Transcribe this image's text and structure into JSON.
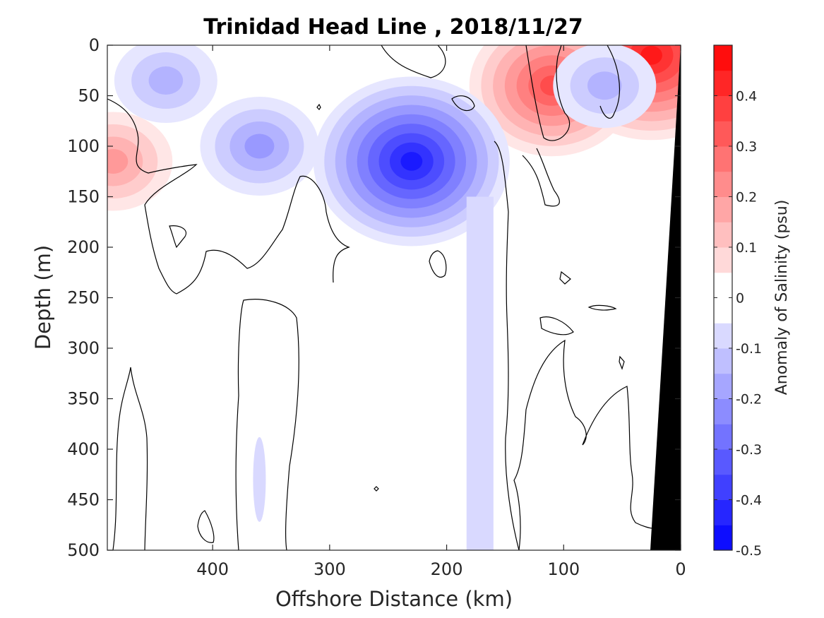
{
  "chart_data": {
    "type": "heatmap",
    "subtype": "filled-contour-section",
    "title": "Trinidad Head Line , 2018/11/27",
    "xlabel": "Offshore Distance (km)",
    "ylabel": "Depth (m)",
    "xlim": [
      0,
      490
    ],
    "x_reversed": true,
    "ylim": [
      0,
      500
    ],
    "y_reversed": true,
    "x_ticks": [
      400,
      300,
      200,
      100,
      0
    ],
    "y_ticks": [
      0,
      50,
      100,
      150,
      200,
      250,
      300,
      350,
      400,
      450,
      500
    ],
    "colorbar": {
      "label": "Anomaly of Salinity (psu)",
      "range": [
        -0.5,
        0.5
      ],
      "level_step": 0.05,
      "ticks": [
        0.4,
        0.3,
        0.2,
        0.1,
        0,
        -0.1,
        -0.2,
        -0.3,
        -0.4,
        -0.5
      ],
      "tick_labels": [
        "0.4",
        "0.3",
        "0.2",
        "0.1",
        "0",
        "-0.1",
        "-0.2",
        "-0.3",
        "-0.4",
        "-0.5"
      ],
      "colormap": "diverging blue-white-red",
      "negative_color": "#0000ff",
      "zero_color": "#ffffff",
      "positive_color": "#ff0000"
    },
    "bathymetry_color": "#000000",
    "zero_contour_color": "#000000",
    "features": [
      {
        "name": "nearshore surface max",
        "x_km": 25,
        "depth_m": 10,
        "value": 0.45
      },
      {
        "name": "shelf subsurface max",
        "x_km": 110,
        "depth_m": 40,
        "value": 0.35
      },
      {
        "name": "offshore subsurface max",
        "x_km": 485,
        "depth_m": 115,
        "value": 0.2
      },
      {
        "name": "subsurface min",
        "x_km": 230,
        "depth_m": 115,
        "value": -0.45
      },
      {
        "name": "minor min",
        "x_km": 360,
        "depth_m": 100,
        "value": -0.2
      },
      {
        "name": "surface min",
        "x_km": 440,
        "depth_m": 35,
        "value": -0.15
      },
      {
        "name": "small min",
        "x_km": 65,
        "depth_m": 40,
        "value": -0.15
      }
    ]
  }
}
